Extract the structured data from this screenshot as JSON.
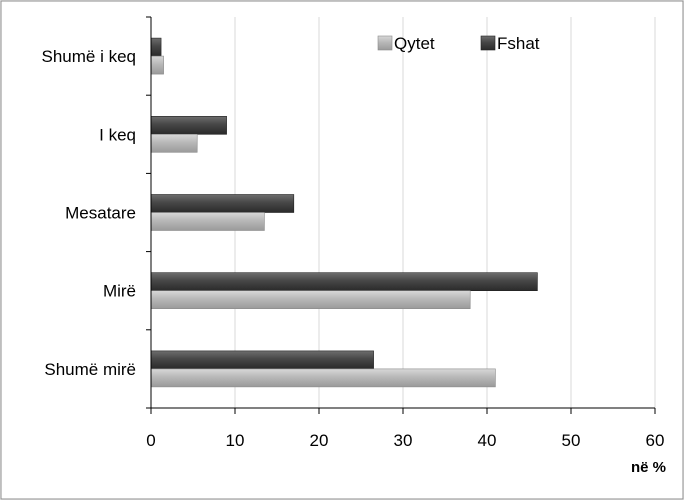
{
  "chart_data": {
    "type": "bar",
    "orientation": "horizontal",
    "categories": [
      "Shumë i keq",
      "I keq",
      "Mesatare",
      "Mirë",
      "Shumë mirë"
    ],
    "series": [
      {
        "name": "Qytet",
        "values": [
          1.5,
          5.5,
          13.5,
          38,
          41
        ],
        "color": "#b4b4b4"
      },
      {
        "name": "Fshat",
        "values": [
          1.2,
          9,
          17,
          46,
          26.5
        ],
        "color": "#4a4a4a"
      }
    ],
    "x_ticks": [
      "0",
      "10",
      "20",
      "30",
      "40",
      "50",
      "60"
    ],
    "xlim": [
      0,
      60
    ],
    "unit_label": "në %",
    "grid": "vertical",
    "legend_position": "top-right"
  }
}
